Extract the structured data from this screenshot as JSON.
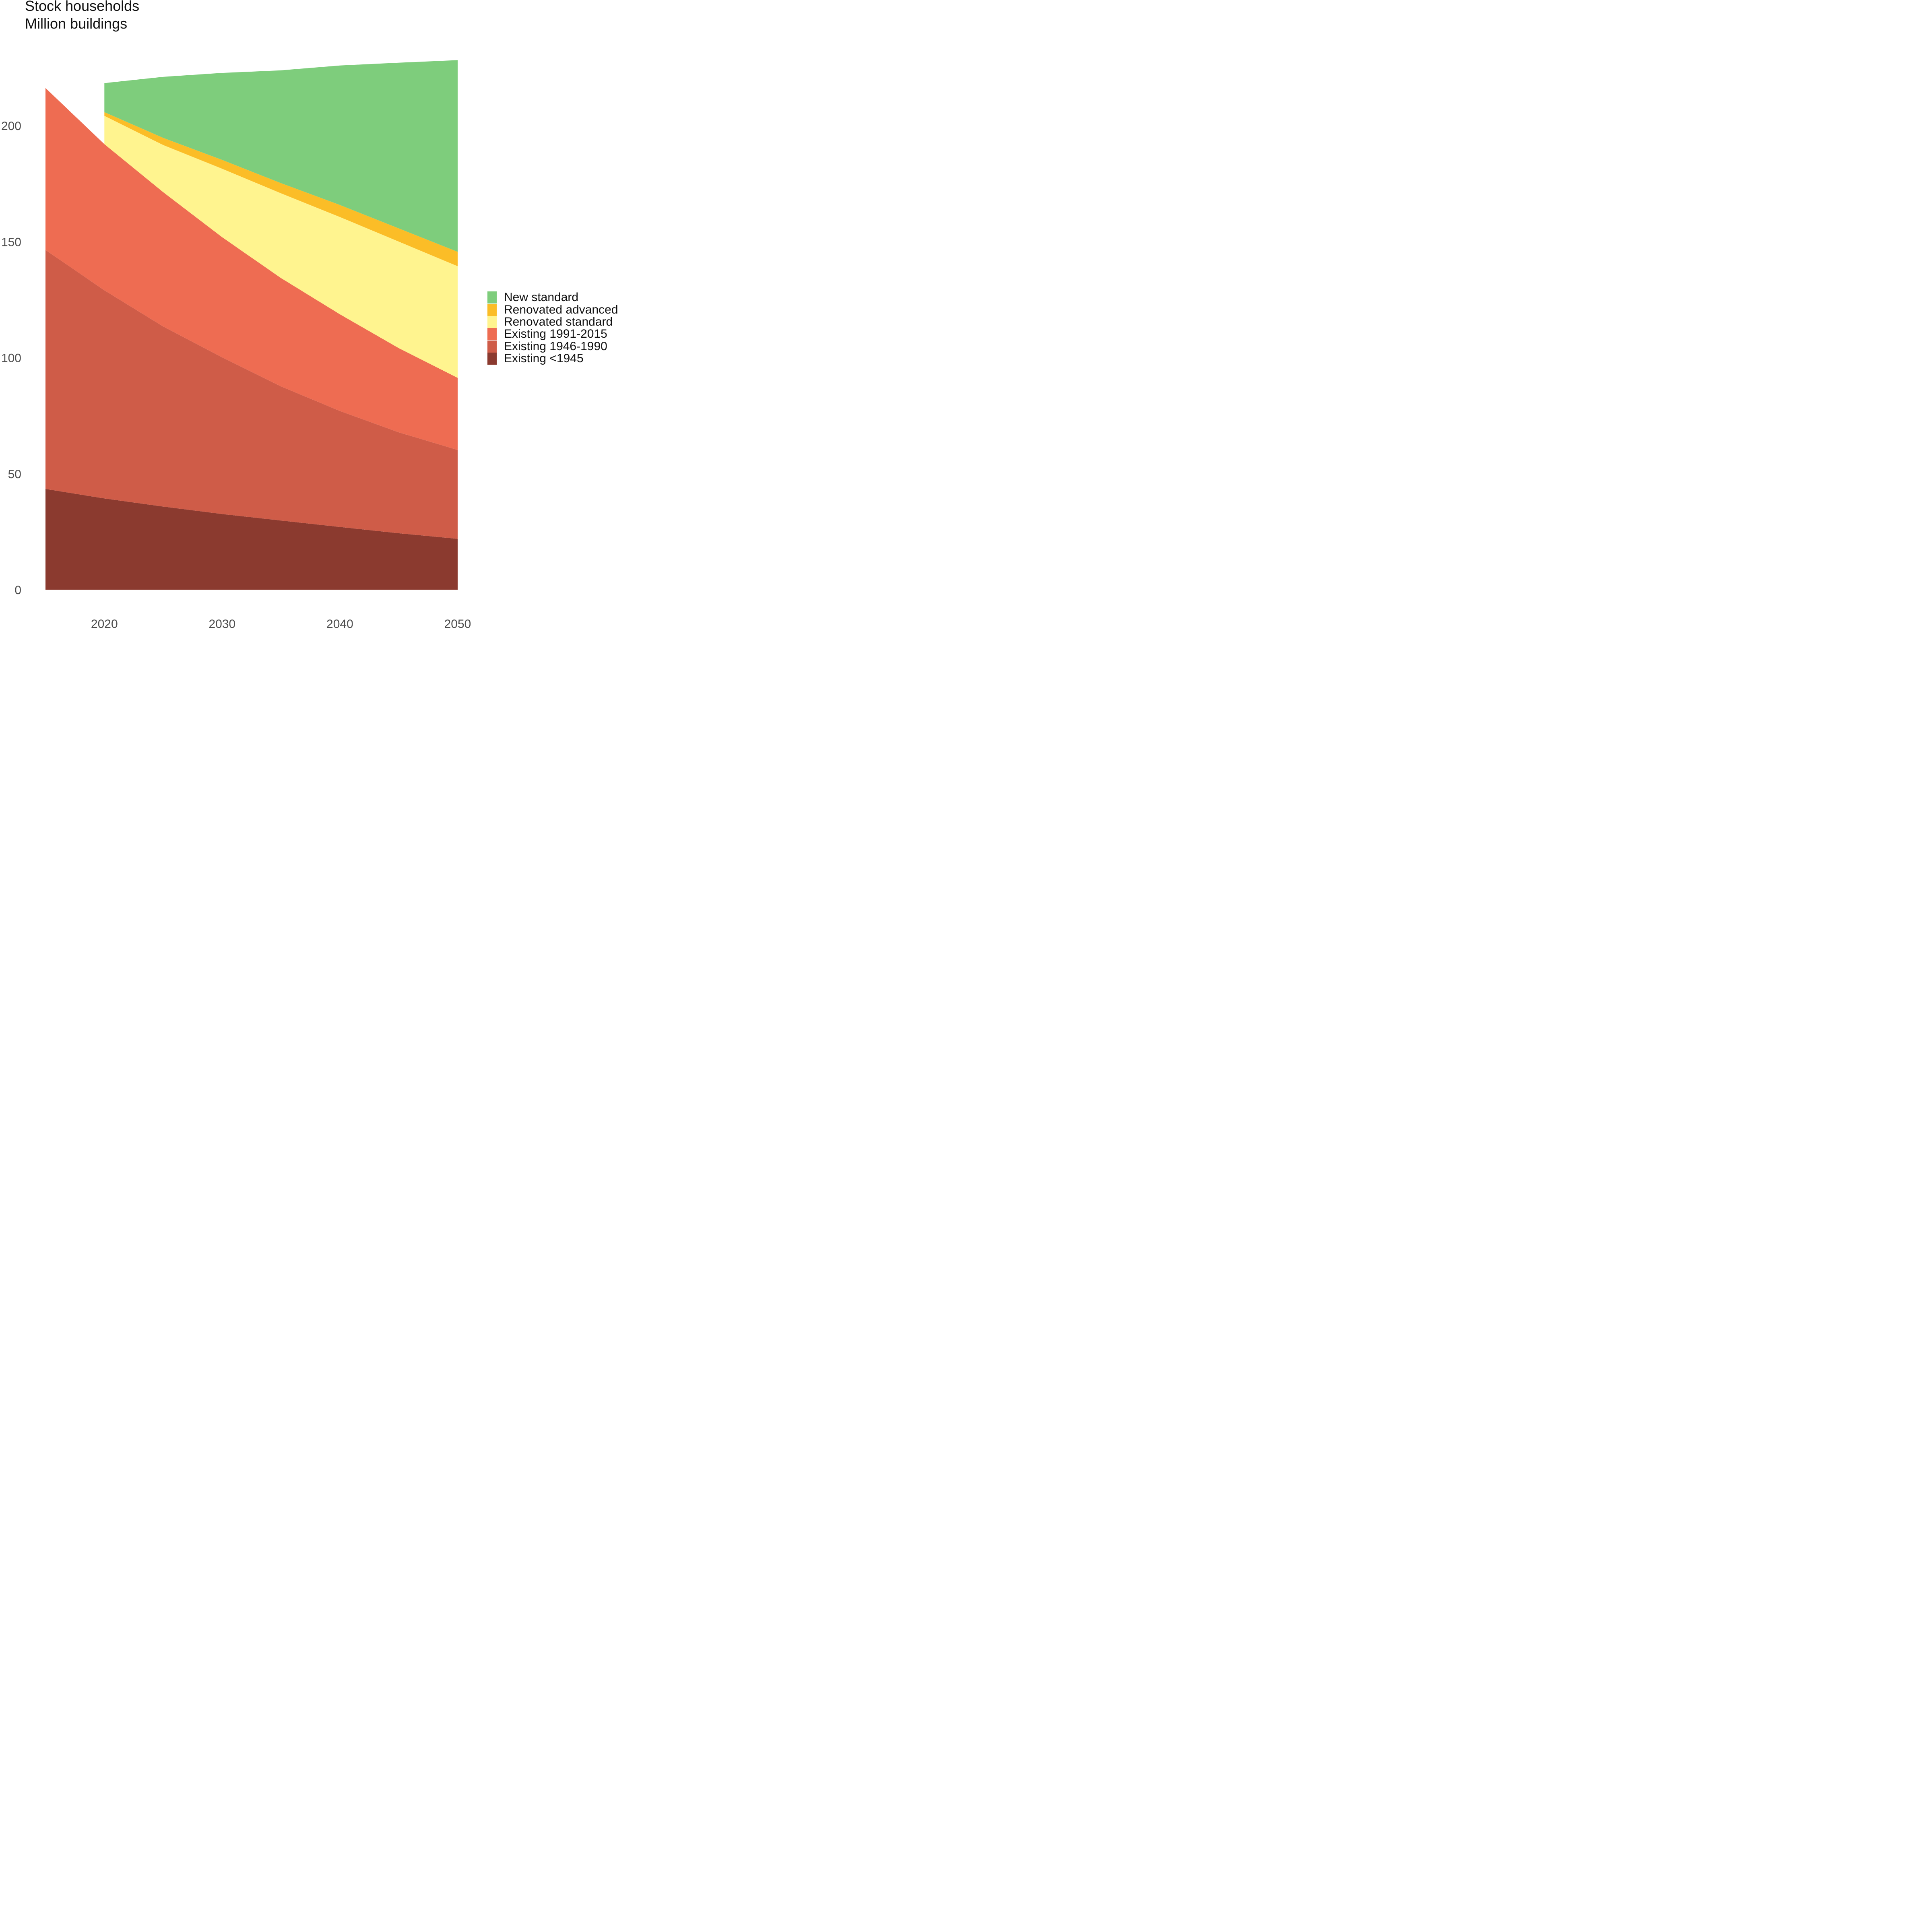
{
  "chart_data": {
    "type": "area",
    "title": "Stock households",
    "subtitle": "Million buildings",
    "xlabel": "",
    "ylabel": "",
    "x": [
      2015,
      2020,
      2025,
      2030,
      2035,
      2040,
      2045,
      2050
    ],
    "xticks": [
      2020,
      2030,
      2040,
      2050
    ],
    "yticks": [
      0,
      50,
      100,
      150,
      200
    ],
    "xlim": [
      2013,
      2052
    ],
    "ylim": [
      0,
      230
    ],
    "stacked": true,
    "grid": false,
    "legend_position": "right",
    "series": [
      {
        "name": "Existing <1945",
        "color": "#8b3a2f",
        "values": [
          43.4,
          39.3,
          35.8,
          32.6,
          29.8,
          27.0,
          24.3,
          21.9
        ]
      },
      {
        "name": "Existing 1946-1990",
        "color": "#cf5c48",
        "values": [
          103.0,
          89.7,
          77.6,
          67.5,
          57.8,
          50.0,
          43.5,
          38.3
        ]
      },
      {
        "name": "Existing 1991-2015",
        "color": "#ee6c52",
        "values": [
          69.8,
          63.0,
          57.9,
          51.8,
          46.7,
          41.7,
          36.3,
          31.1
        ]
      },
      {
        "name": "Renovated standard",
        "color": "#fff48f",
        "values": [
          null,
          12.2,
          20.3,
          29.5,
          36.5,
          41.9,
          45.9,
          48.1
        ]
      },
      {
        "name": "Renovated advanced",
        "color": "#fbbd27",
        "values": [
          null,
          1.6,
          3.1,
          3.8,
          4.4,
          5.2,
          5.7,
          6.2
        ]
      },
      {
        "name": "New standard",
        "color": "#7ecd7c",
        "values": [
          null,
          12.5,
          26.3,
          37.5,
          48.6,
          60.1,
          71.4,
          82.6
        ]
      }
    ]
  }
}
